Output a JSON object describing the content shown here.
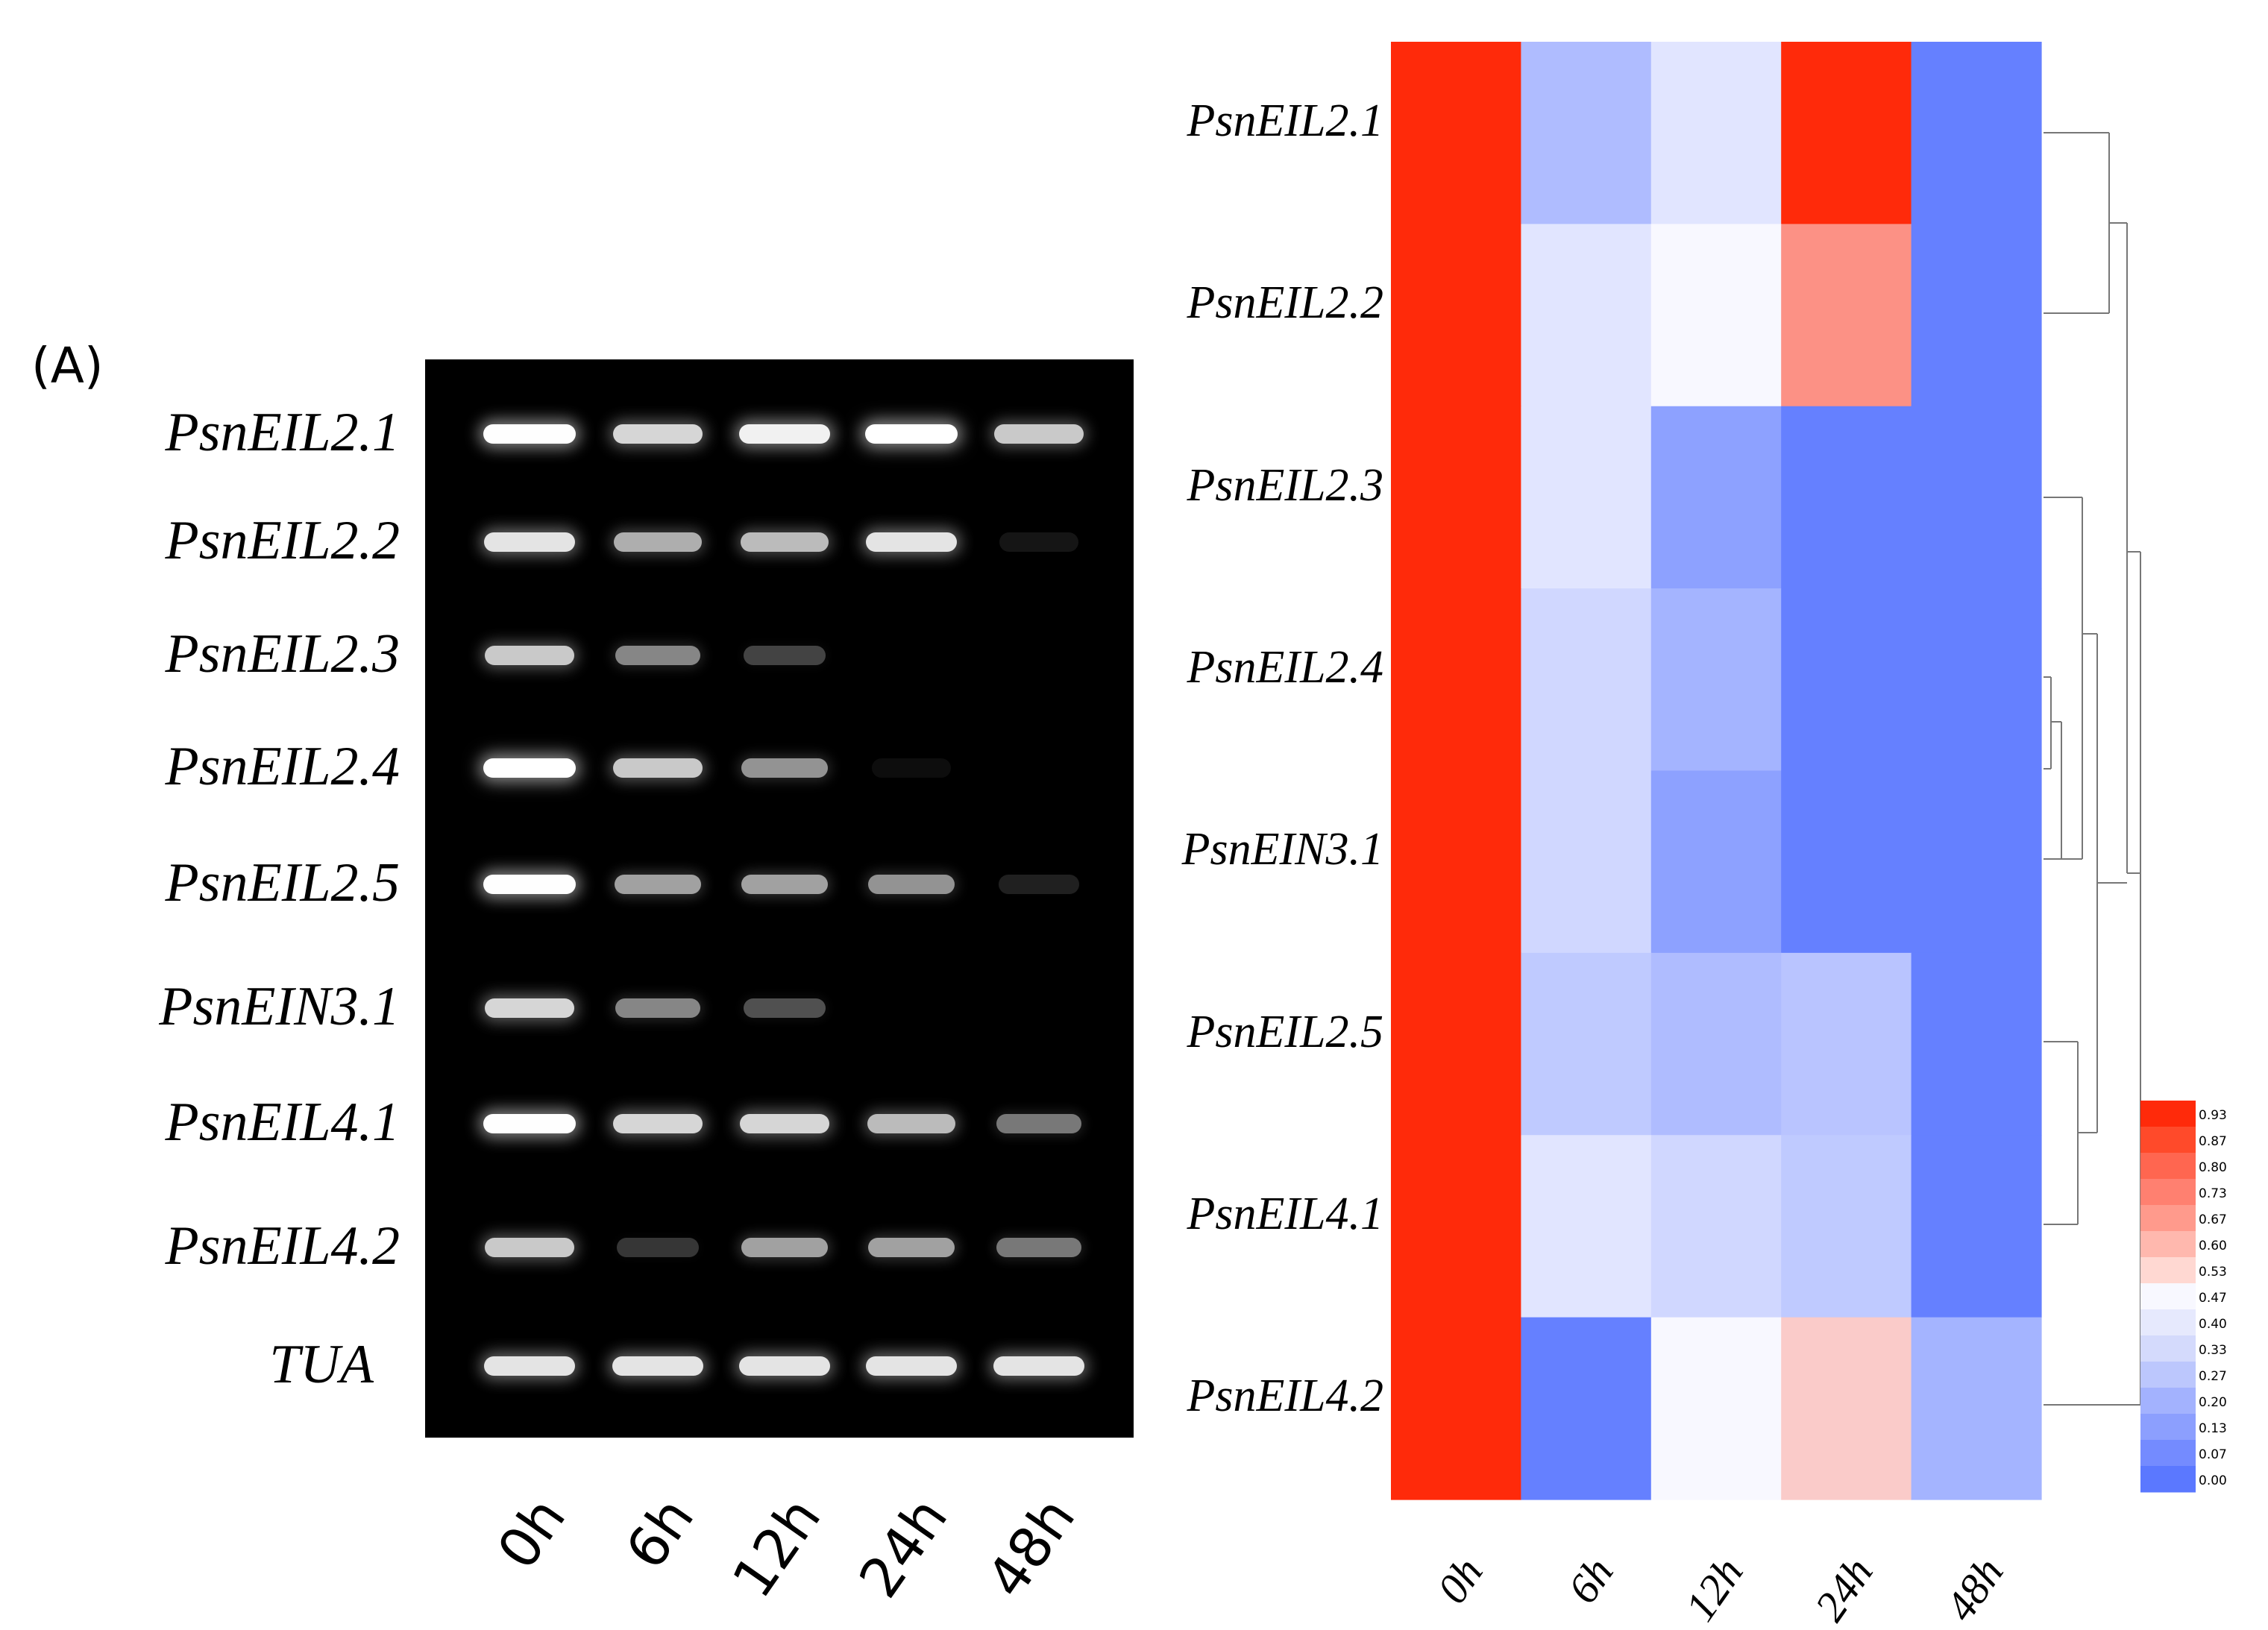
{
  "panel_label": "(A)",
  "gel": {
    "row_labels": [
      "PsnEIL2.1",
      "PsnEIL2.2",
      "PsnEIL2.3",
      "PsnEIL2.4",
      "PsnEIL2.5",
      "PsnEIN3.1",
      "PsnEIL4.1",
      "PsnEIL4.2",
      "TUA"
    ],
    "time_points": [
      "0h",
      "6h",
      "12h",
      "24h",
      "48h"
    ],
    "band_intensity": [
      [
        0.95,
        0.8,
        0.9,
        1.0,
        0.75
      ],
      [
        0.85,
        0.65,
        0.7,
        0.85,
        0.08
      ],
      [
        0.75,
        0.5,
        0.25,
        0.0,
        0.0
      ],
      [
        1.0,
        0.75,
        0.55,
        0.05,
        0.0
      ],
      [
        0.95,
        0.6,
        0.6,
        0.55,
        0.12
      ],
      [
        0.8,
        0.5,
        0.3,
        0.0,
        0.0
      ],
      [
        0.95,
        0.8,
        0.8,
        0.7,
        0.45
      ],
      [
        0.75,
        0.2,
        0.6,
        0.6,
        0.45
      ],
      [
        0.85,
        0.85,
        0.85,
        0.85,
        0.85
      ]
    ]
  },
  "chart_data": {
    "type": "heatmap",
    "rows": [
      "PsnEIL2.1",
      "PsnEIL2.2",
      "PsnEIL2.3",
      "PsnEIL2.4",
      "PsnEIN3.1",
      "PsnEIL2.5",
      "PsnEIL4.1",
      "PsnEIL4.2"
    ],
    "columns": [
      "0h",
      "6h",
      "12h",
      "24h",
      "48h"
    ],
    "values": [
      [
        0.97,
        0.25,
        0.4,
        0.97,
        0.03
      ],
      [
        0.97,
        0.4,
        0.47,
        0.72,
        0.03
      ],
      [
        0.97,
        0.4,
        0.15,
        0.03,
        0.03
      ],
      [
        0.97,
        0.35,
        0.22,
        0.03,
        0.03
      ],
      [
        0.97,
        0.35,
        0.15,
        0.03,
        0.03
      ],
      [
        0.97,
        0.3,
        0.25,
        0.28,
        0.03
      ],
      [
        0.97,
        0.4,
        0.35,
        0.3,
        0.03
      ],
      [
        0.97,
        0.03,
        0.47,
        0.58,
        0.22
      ]
    ],
    "color_scale": {
      "ticks": [
        "0.93",
        "0.87",
        "0.80",
        "0.73",
        "0.67",
        "0.60",
        "0.53",
        "0.47",
        "0.40",
        "0.33",
        "0.27",
        "0.20",
        "0.13",
        "0.07",
        "0.00"
      ],
      "colors": [
        "#ff2a0a",
        "#ff4a2a",
        "#ff6650",
        "#ff8070",
        "#ff9a8c",
        "#ffb8ae",
        "#ffd8d2",
        "#f8f8ff",
        "#e6e9fd",
        "#d4dafc",
        "#bcc7fd",
        "#a3b2fe",
        "#8c9ffe",
        "#748bff",
        "#5b78ff"
      ],
      "low_color": "#5b78ff",
      "mid_color": "#f8f8ff",
      "high_color": "#ff2a0a"
    },
    "dendrogram": "row clustering tree drawn to the right of the heatmap"
  }
}
